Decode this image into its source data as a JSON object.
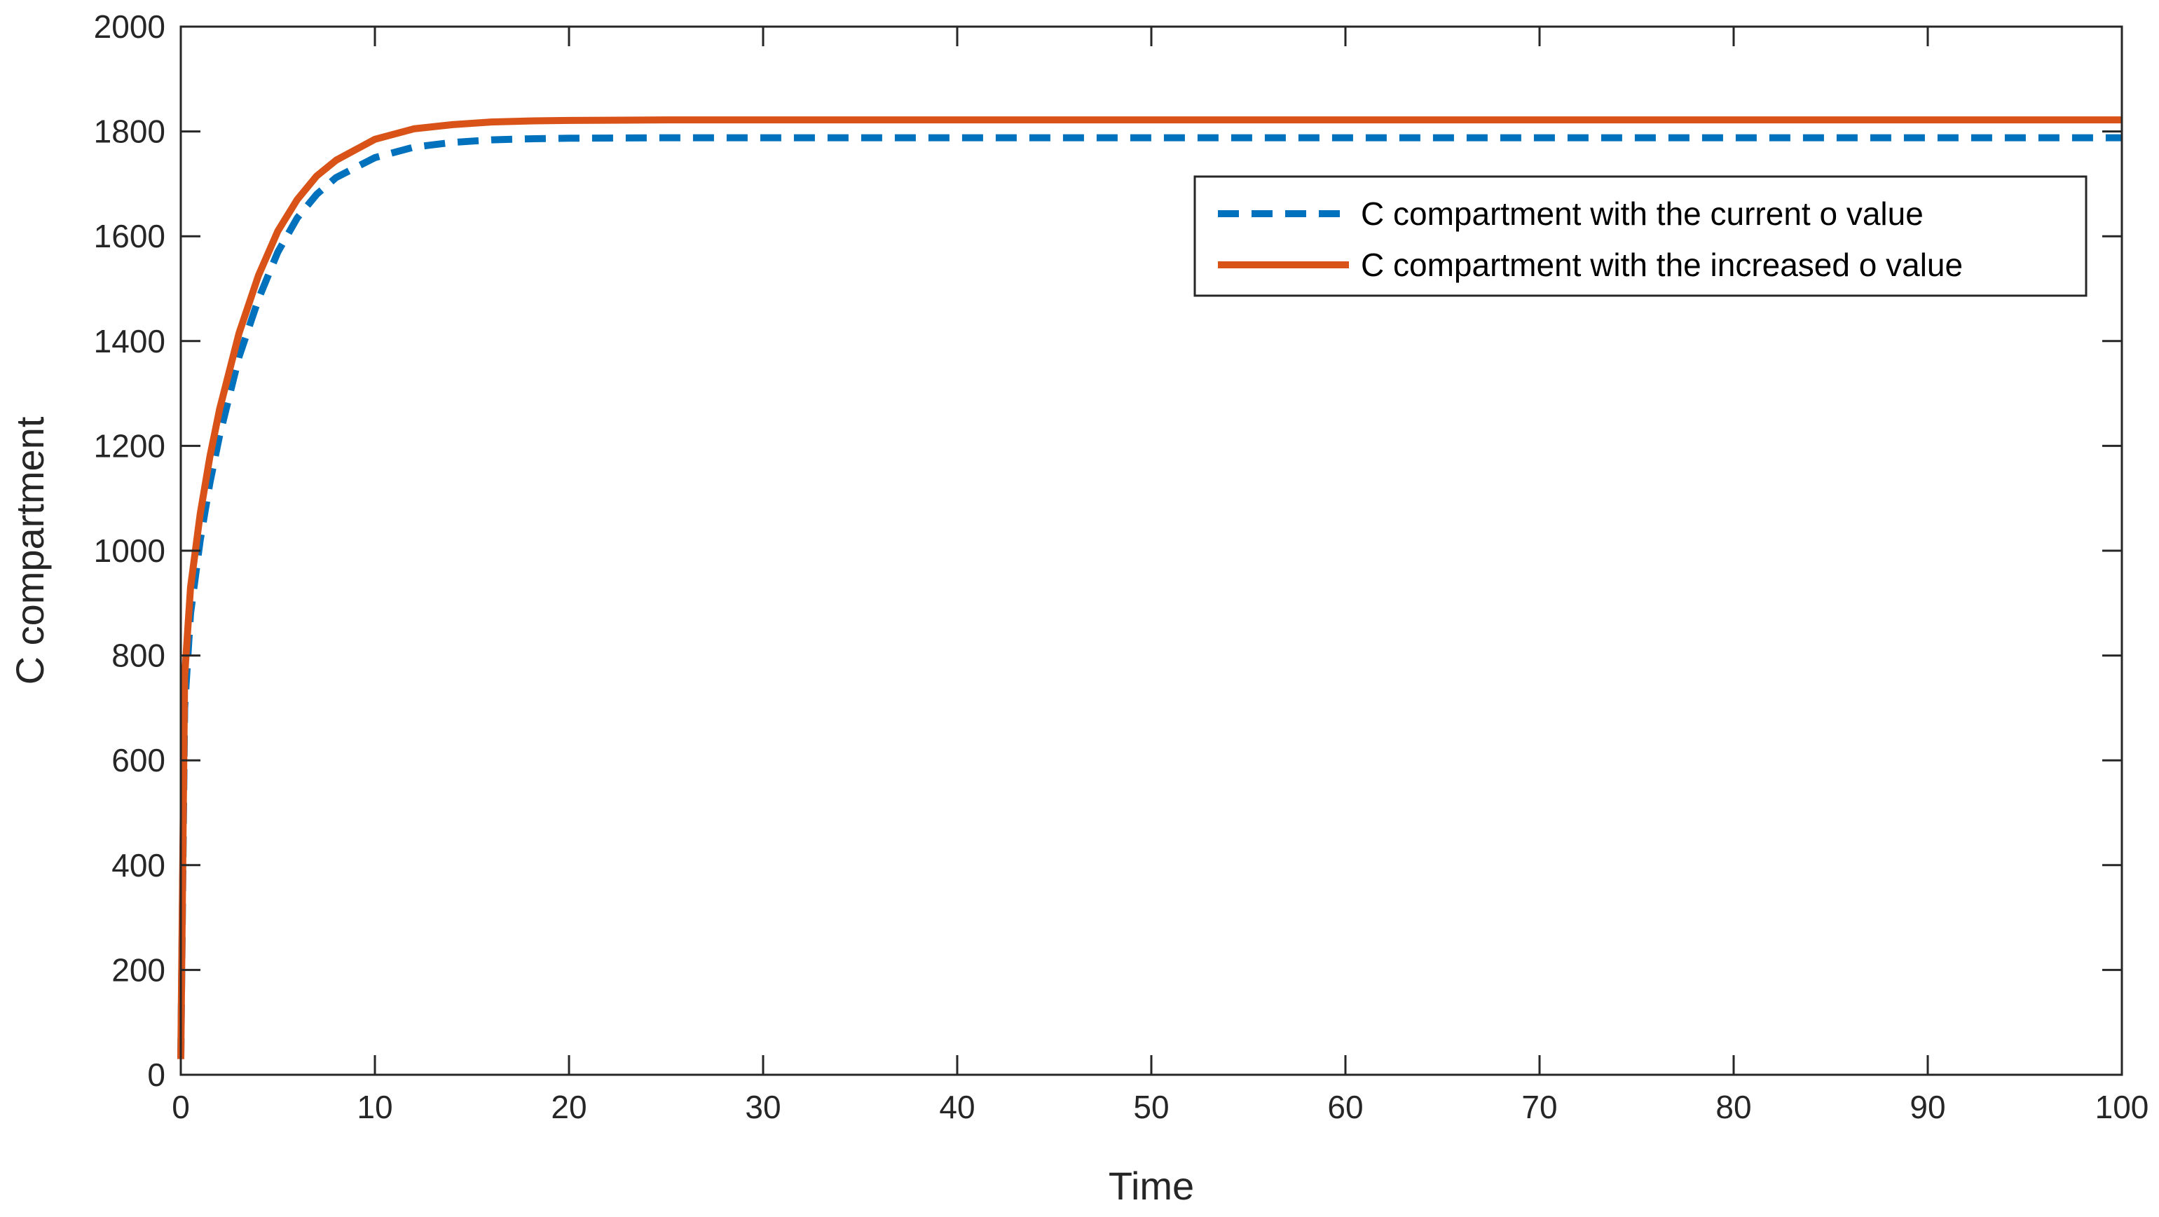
{
  "chart_data": {
    "type": "line",
    "title": "",
    "xlabel": "Time",
    "ylabel": "C compartment",
    "xlim": [
      0,
      100
    ],
    "ylim": [
      0,
      2000
    ],
    "xticks": [
      0,
      10,
      20,
      30,
      40,
      50,
      60,
      70,
      80,
      90,
      100
    ],
    "yticks": [
      0,
      200,
      400,
      600,
      800,
      1000,
      1200,
      1400,
      1600,
      1800,
      2000
    ],
    "grid": false,
    "legend_position": "top-right",
    "series": [
      {
        "name": "C compartment with the current o value",
        "color": "#0072BD",
        "style": "dashed",
        "x": [
          0,
          0.2,
          0.5,
          1,
          1.5,
          2,
          3,
          4,
          5,
          6,
          7,
          8,
          10,
          12,
          14,
          16,
          18,
          20,
          25,
          30,
          40,
          50,
          60,
          70,
          80,
          90,
          100
        ],
        "y": [
          30,
          700,
          880,
          1020,
          1130,
          1220,
          1370,
          1480,
          1570,
          1635,
          1680,
          1712,
          1750,
          1770,
          1779,
          1784,
          1786,
          1787,
          1788,
          1788,
          1788,
          1788,
          1788,
          1788,
          1788,
          1788,
          1788
        ]
      },
      {
        "name": "C compartment with the increased o value",
        "color": "#D95319",
        "style": "solid",
        "x": [
          0,
          0.2,
          0.5,
          1,
          1.5,
          2,
          3,
          4,
          5,
          6,
          7,
          8,
          10,
          12,
          14,
          16,
          18,
          20,
          25,
          30,
          40,
          50,
          60,
          70,
          80,
          90,
          100
        ],
        "y": [
          30,
          760,
          930,
          1070,
          1180,
          1270,
          1415,
          1525,
          1610,
          1670,
          1715,
          1745,
          1785,
          1805,
          1813,
          1818,
          1820,
          1821,
          1822,
          1822,
          1822,
          1822,
          1822,
          1822,
          1822,
          1822,
          1822
        ]
      }
    ]
  }
}
